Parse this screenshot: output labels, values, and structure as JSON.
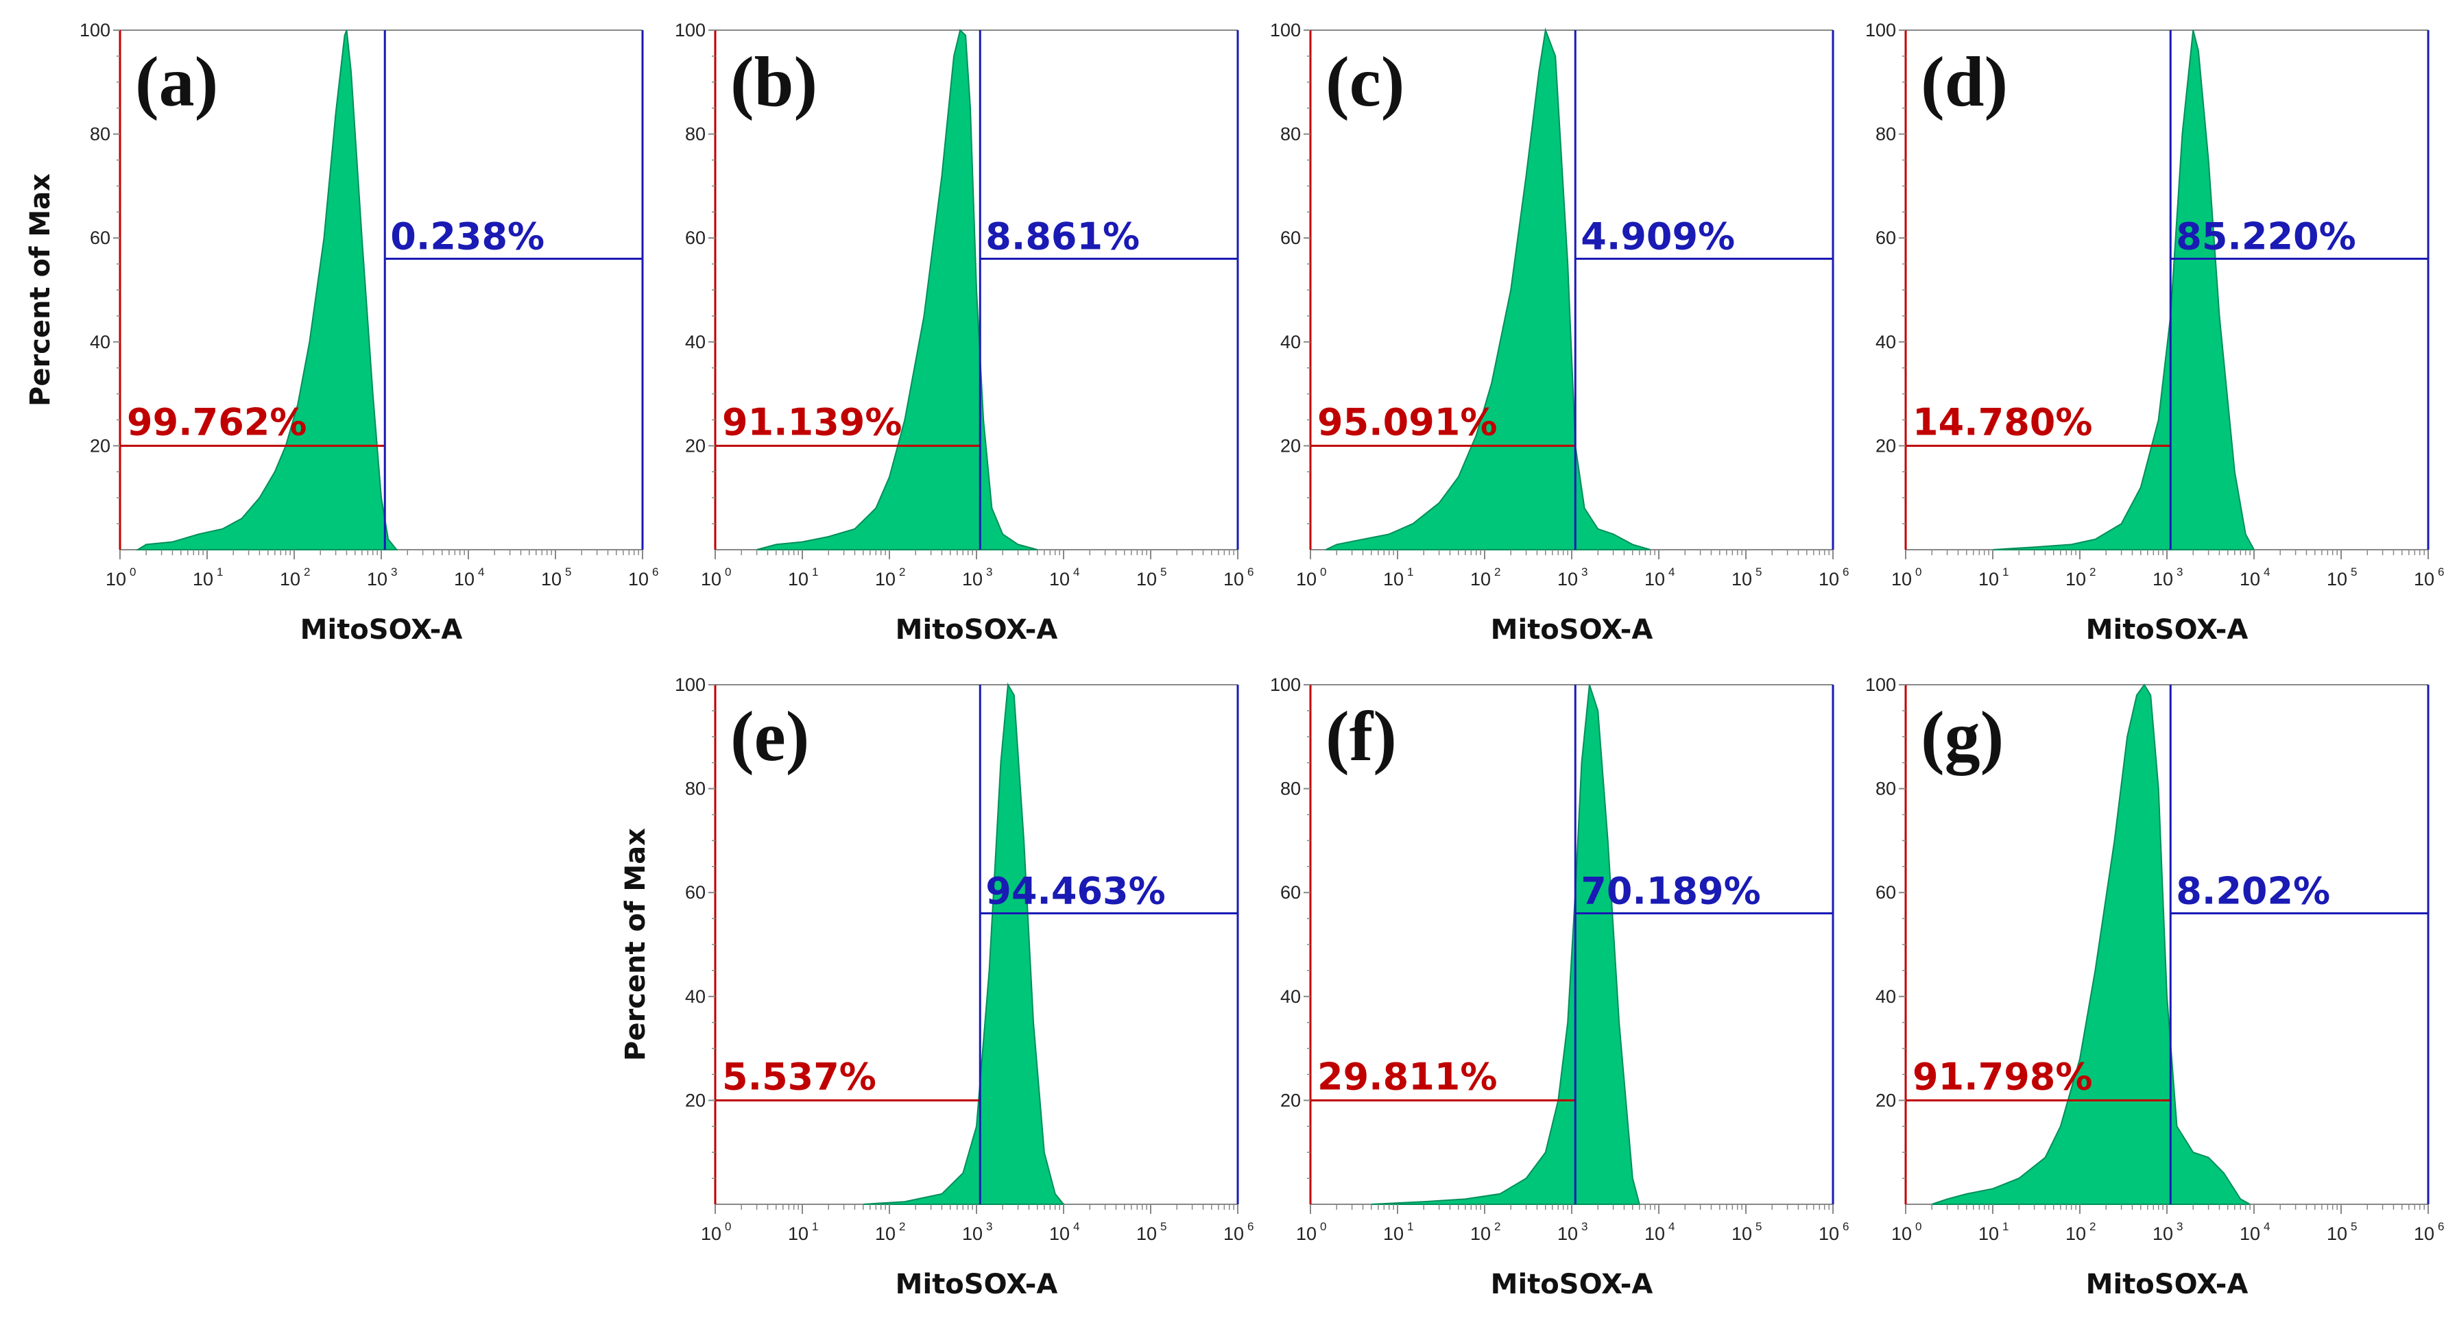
{
  "colors": {
    "histogram_fill": "#00c67a",
    "histogram_stroke": "#008f5a",
    "left_gate": "#c00000",
    "right_gate": "#1a1ab4",
    "axis": "#888888"
  },
  "chart_data": [
    {
      "type": "area",
      "panel_label": "(a)",
      "xlabel": "MitoSOX-A",
      "ylabel": "Percent of Max",
      "xscale": "log10",
      "xlim": [
        1,
        1000000
      ],
      "ylim": [
        0,
        100
      ],
      "xticks": [
        "10",
        "10",
        "10",
        "10",
        "10",
        "10",
        "10"
      ],
      "xtick_exponents": [
        "0",
        "1",
        "2",
        "3",
        "4",
        "5",
        "6"
      ],
      "yticks": [
        "20",
        "40",
        "60",
        "80",
        "100"
      ],
      "left_gate": {
        "label": "99.762%",
        "x_start": 1,
        "x_end": 1100,
        "y": 20
      },
      "right_gate": {
        "label": "0.238%",
        "x_start": 1100,
        "x_end": 1000000,
        "y": 56
      },
      "series": [
        {
          "name": "MitoSOX-A histogram",
          "x": [
            1.6,
            2,
            4,
            8,
            15,
            25,
            40,
            60,
            80,
            110,
            150,
            220,
            300,
            380,
            400,
            450,
            600,
            800,
            1000,
            1200,
            1500
          ],
          "y": [
            0,
            1,
            1.5,
            3,
            4,
            6,
            10,
            15,
            20,
            28,
            40,
            60,
            84,
            99,
            100,
            92,
            60,
            30,
            10,
            2,
            0
          ]
        }
      ]
    },
    {
      "type": "area",
      "panel_label": "(b)",
      "xlabel": "MitoSOX-A",
      "ylabel": "",
      "xscale": "log10",
      "xlim": [
        1,
        1000000
      ],
      "ylim": [
        0,
        100
      ],
      "xticks": [
        "10",
        "10",
        "10",
        "10",
        "10",
        "10",
        "10"
      ],
      "xtick_exponents": [
        "0",
        "1",
        "2",
        "3",
        "4",
        "5",
        "6"
      ],
      "yticks": [
        "20",
        "40",
        "60",
        "80",
        "100"
      ],
      "left_gate": {
        "label": "91.139%",
        "x_start": 1,
        "x_end": 1100,
        "y": 20
      },
      "right_gate": {
        "label": "8.861%",
        "x_start": 1100,
        "x_end": 1000000,
        "y": 56
      },
      "series": [
        {
          "name": "MitoSOX-A histogram",
          "x": [
            3,
            5,
            10,
            20,
            40,
            70,
            100,
            150,
            250,
            400,
            550,
            650,
            750,
            850,
            1000,
            1200,
            1500,
            2000,
            3000,
            5000
          ],
          "y": [
            0,
            1,
            1.5,
            2.5,
            4,
            8,
            14,
            25,
            45,
            72,
            95,
            100,
            99,
            85,
            50,
            25,
            8,
            3,
            1,
            0
          ]
        }
      ]
    },
    {
      "type": "area",
      "panel_label": "(c)",
      "xlabel": "MitoSOX-A",
      "ylabel": "",
      "xscale": "log10",
      "xlim": [
        1,
        1000000
      ],
      "ylim": [
        0,
        100
      ],
      "xticks": [
        "10",
        "10",
        "10",
        "10",
        "10",
        "10",
        "10"
      ],
      "xtick_exponents": [
        "0",
        "1",
        "2",
        "3",
        "4",
        "5",
        "6"
      ],
      "yticks": [
        "20",
        "40",
        "60",
        "80",
        "100"
      ],
      "left_gate": {
        "label": "95.091%",
        "x_start": 1,
        "x_end": 1100,
        "y": 20
      },
      "right_gate": {
        "label": "4.909%",
        "x_start": 1100,
        "x_end": 1000000,
        "y": 56
      },
      "series": [
        {
          "name": "MitoSOX-A histogram",
          "x": [
            1.5,
            2,
            4,
            8,
            15,
            30,
            50,
            80,
            120,
            200,
            300,
            420,
            500,
            650,
            900,
            1100,
            1400,
            2000,
            3000,
            5000,
            8000
          ],
          "y": [
            0,
            1,
            2,
            3,
            5,
            9,
            14,
            22,
            32,
            50,
            72,
            92,
            100,
            95,
            55,
            20,
            8,
            4,
            3,
            1,
            0
          ]
        }
      ]
    },
    {
      "type": "area",
      "panel_label": "(d)",
      "xlabel": "MitoSOX-A",
      "ylabel": "",
      "xscale": "log10",
      "xlim": [
        1,
        1000000
      ],
      "ylim": [
        0,
        100
      ],
      "xticks": [
        "10",
        "10",
        "10",
        "10",
        "10",
        "10",
        "10"
      ],
      "xtick_exponents": [
        "0",
        "1",
        "2",
        "3",
        "4",
        "5",
        "6"
      ],
      "yticks": [
        "20",
        "40",
        "60",
        "80",
        "100"
      ],
      "left_gate": {
        "label": "14.780%",
        "x_start": 1,
        "x_end": 1100,
        "y": 20
      },
      "right_gate": {
        "label": "85.220%",
        "x_start": 1100,
        "x_end": 1000000,
        "y": 56
      },
      "series": [
        {
          "name": "MitoSOX-A histogram",
          "x": [
            10,
            30,
            80,
            150,
            300,
            500,
            800,
            1100,
            1500,
            2000,
            2300,
            3000,
            4000,
            6000,
            8000,
            10000
          ],
          "y": [
            0,
            0.5,
            1,
            2,
            5,
            12,
            25,
            45,
            80,
            100,
            96,
            75,
            45,
            15,
            3,
            0
          ]
        }
      ]
    },
    {
      "type": "area",
      "panel_label": "(e)",
      "xlabel": "MitoSOX-A",
      "ylabel": "Percent of Max",
      "xscale": "log10",
      "xlim": [
        1,
        1000000
      ],
      "ylim": [
        0,
        100
      ],
      "xticks": [
        "10",
        "10",
        "10",
        "10",
        "10",
        "10",
        "10"
      ],
      "xtick_exponents": [
        "0",
        "1",
        "2",
        "3",
        "4",
        "5",
        "6"
      ],
      "yticks": [
        "20",
        "40",
        "60",
        "80",
        "100"
      ],
      "left_gate": {
        "label": "5.537%",
        "x_start": 1,
        "x_end": 1100,
        "y": 20
      },
      "right_gate": {
        "label": "94.463%",
        "x_start": 1100,
        "x_end": 1000000,
        "y": 56
      },
      "series": [
        {
          "name": "MitoSOX-A histogram",
          "x": [
            50,
            150,
            400,
            700,
            1000,
            1400,
            1900,
            2300,
            2700,
            3500,
            4500,
            6000,
            8000,
            10000
          ],
          "y": [
            0,
            0.5,
            2,
            6,
            15,
            45,
            85,
            100,
            98,
            70,
            35,
            10,
            2,
            0
          ]
        }
      ]
    },
    {
      "type": "area",
      "panel_label": "(f)",
      "xlabel": "MitoSOX-A",
      "ylabel": "",
      "xscale": "log10",
      "xlim": [
        1,
        1000000
      ],
      "ylim": [
        0,
        100
      ],
      "xticks": [
        "10",
        "10",
        "10",
        "10",
        "10",
        "10",
        "10"
      ],
      "xtick_exponents": [
        "0",
        "1",
        "2",
        "3",
        "4",
        "5",
        "6"
      ],
      "yticks": [
        "20",
        "40",
        "60",
        "80",
        "100"
      ],
      "left_gate": {
        "label": "29.811%",
        "x_start": 1,
        "x_end": 1100,
        "y": 20
      },
      "right_gate": {
        "label": "70.189%",
        "x_start": 1100,
        "x_end": 1000000,
        "y": 56
      },
      "series": [
        {
          "name": "MitoSOX-A histogram",
          "x": [
            5,
            20,
            60,
            150,
            300,
            500,
            700,
            900,
            1100,
            1300,
            1600,
            2000,
            2600,
            3500,
            5000,
            6000
          ],
          "y": [
            0,
            0.5,
            1,
            2,
            5,
            10,
            20,
            35,
            60,
            85,
            100,
            95,
            70,
            35,
            5,
            0
          ]
        }
      ]
    },
    {
      "type": "area",
      "panel_label": "(g)",
      "xlabel": "MitoSOX-A",
      "ylabel": "",
      "xscale": "log10",
      "xlim": [
        1,
        1000000
      ],
      "ylim": [
        0,
        100
      ],
      "xticks": [
        "10",
        "10",
        "10",
        "10",
        "10",
        "10",
        "10"
      ],
      "xtick_exponents": [
        "0",
        "1",
        "2",
        "3",
        "4",
        "5",
        "6"
      ],
      "yticks": [
        "20",
        "40",
        "60",
        "80",
        "100"
      ],
      "left_gate": {
        "label": "91.798%",
        "x_start": 1,
        "x_end": 1100,
        "y": 20
      },
      "right_gate": {
        "label": "8.202%",
        "x_start": 1100,
        "x_end": 1000000,
        "y": 56
      },
      "series": [
        {
          "name": "MitoSOX-A histogram",
          "x": [
            2,
            3,
            5,
            10,
            20,
            40,
            60,
            100,
            150,
            250,
            350,
            450,
            550,
            650,
            800,
            1000,
            1300,
            2000,
            3000,
            4500,
            7000,
            9000
          ],
          "y": [
            0,
            1,
            2,
            3,
            5,
            9,
            15,
            28,
            45,
            70,
            90,
            98,
            100,
            98,
            80,
            40,
            15,
            10,
            9,
            6,
            1,
            0
          ]
        }
      ]
    }
  ]
}
